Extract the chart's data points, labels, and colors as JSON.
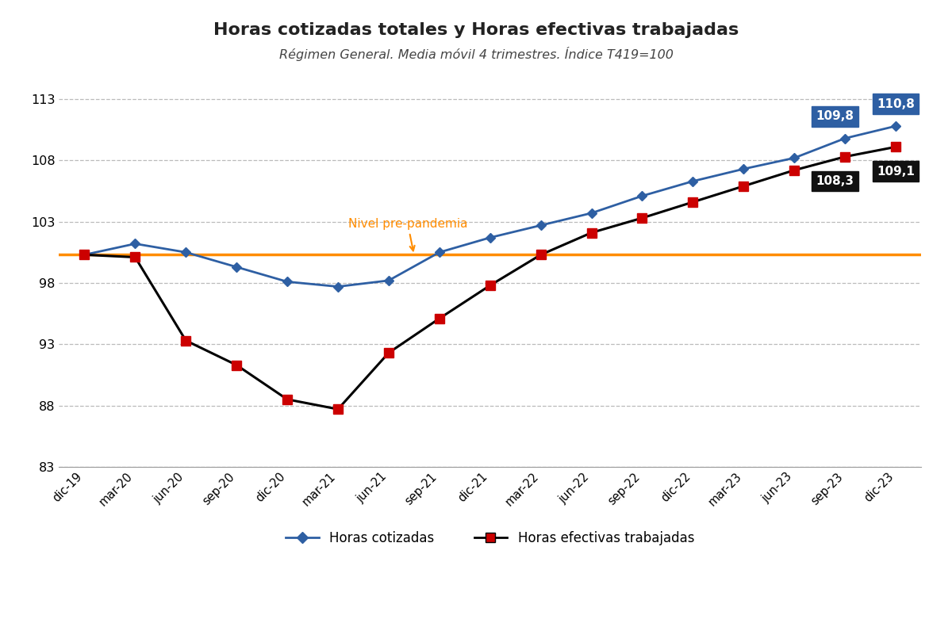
{
  "title": "Horas cotizadas totales y Horas efectivas trabajadas",
  "subtitle": "Régimen General. Media móvil 4 trimestres. Índice T419=100",
  "x_labels": [
    "dic-19",
    "mar-20",
    "jun-20",
    "sep-20",
    "dic-20",
    "mar-21",
    "jun-21",
    "sep-21",
    "dic-21",
    "mar-22",
    "jun-22",
    "sep-22",
    "dic-22",
    "mar-23",
    "jun-23",
    "sep-23",
    "dic-23"
  ],
  "horas_cotizadas": [
    100.3,
    101.2,
    100.5,
    99.3,
    98.1,
    97.7,
    98.2,
    100.5,
    101.7,
    102.7,
    103.7,
    105.1,
    106.3,
    107.3,
    108.2,
    109.8,
    110.8
  ],
  "horas_efectivas": [
    100.3,
    100.1,
    93.3,
    91.3,
    88.5,
    87.7,
    92.3,
    95.1,
    97.8,
    100.3,
    102.1,
    103.3,
    104.6,
    105.9,
    107.2,
    108.3,
    109.1
  ],
  "prepandemia_level": 100.3,
  "prepandemia_label": "Nivel pre-pandemia",
  "ylim": [
    83,
    115
  ],
  "yticks": [
    83,
    88,
    93,
    98,
    103,
    108,
    113
  ],
  "line1_color": "#2E5FA3",
  "line2_color": "#CC0000",
  "line2_line_color": "#000000",
  "prepandemia_color": "#FF8C00",
  "legend_label1": "Horas cotizadas",
  "legend_label2": "Horas efectivas trabajadas",
  "background_color": "#ffffff",
  "grid_color": "#bbbbbb"
}
